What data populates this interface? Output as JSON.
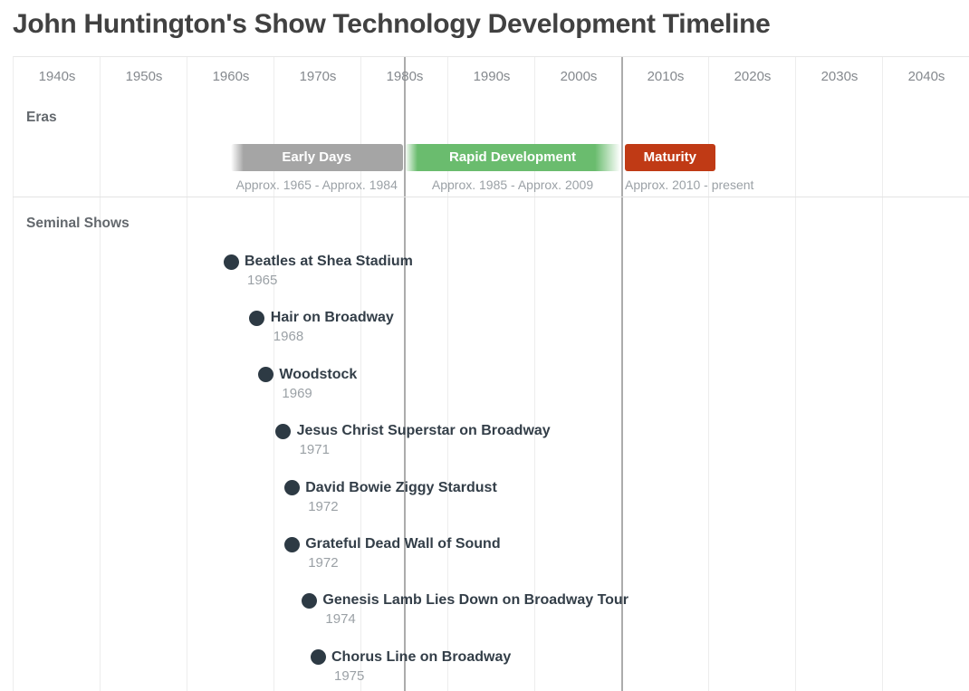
{
  "title": "John Huntington's Show Technology Development Timeline",
  "chart_data": {
    "type": "timeline",
    "title": "John Huntington's Show Technology Development Timeline",
    "x_axis": {
      "unit": "decade",
      "tick_labels": [
        "1940s",
        "1950s",
        "1960s",
        "1970s",
        "1980s",
        "1990s",
        "2000s",
        "2010s",
        "2020s",
        "2030s",
        "2040s"
      ],
      "range_years": [
        1940,
        2050
      ],
      "grid": true
    },
    "era_boundary_years": [
      1985,
      2010
    ],
    "rows": [
      {
        "label": "Eras",
        "type": "spans",
        "spans": [
          {
            "label": "Early Days",
            "range_label": "Approx. 1965 - Approx. 1984",
            "bar_start_year": 1965,
            "bar_end_year": 1985,
            "color": "#a5a5a5",
            "fade_in": true,
            "fade_out": false
          },
          {
            "label": "Rapid Development",
            "range_label": "Approx. 1985 - Approx. 2009",
            "bar_start_year": 1985,
            "bar_end_year": 2010,
            "color": "#6abc6e",
            "fade_in": true,
            "fade_out": true
          },
          {
            "label": "Maturity",
            "range_label": "Approx. 2010 - present",
            "bar_start_year": 2010,
            "bar_end_year": 2021,
            "color": "#c03a15",
            "fade_in": false,
            "fade_out": false
          }
        ]
      },
      {
        "label": "Seminal Shows",
        "type": "events",
        "events": [
          {
            "label": "Beatles at Shea Stadium",
            "year": 1965
          },
          {
            "label": "Hair on Broadway",
            "year": 1968
          },
          {
            "label": "Woodstock",
            "year": 1969
          },
          {
            "label": "Jesus Christ Superstar on Broadway",
            "year": 1971
          },
          {
            "label": "David Bowie Ziggy Stardust",
            "year": 1972
          },
          {
            "label": "Grateful Dead Wall of Sound",
            "year": 1972
          },
          {
            "label": "Genesis Lamb Lies Down on Broadway Tour",
            "year": 1974
          },
          {
            "label": "Chorus Line on Broadway",
            "year": 1975
          }
        ]
      }
    ]
  },
  "colors": {
    "title_text": "#414141",
    "decade_text": "#85898e",
    "row_label_text": "#63686d",
    "event_text": "#333e48",
    "event_dot": "#2d3a44",
    "muted_text": "#9ba1a6",
    "grid_line": "#ededed",
    "era_boundary_line": "#acacac",
    "section_border": "#e3e3e3",
    "era_bar_text": "#ffffff"
  }
}
